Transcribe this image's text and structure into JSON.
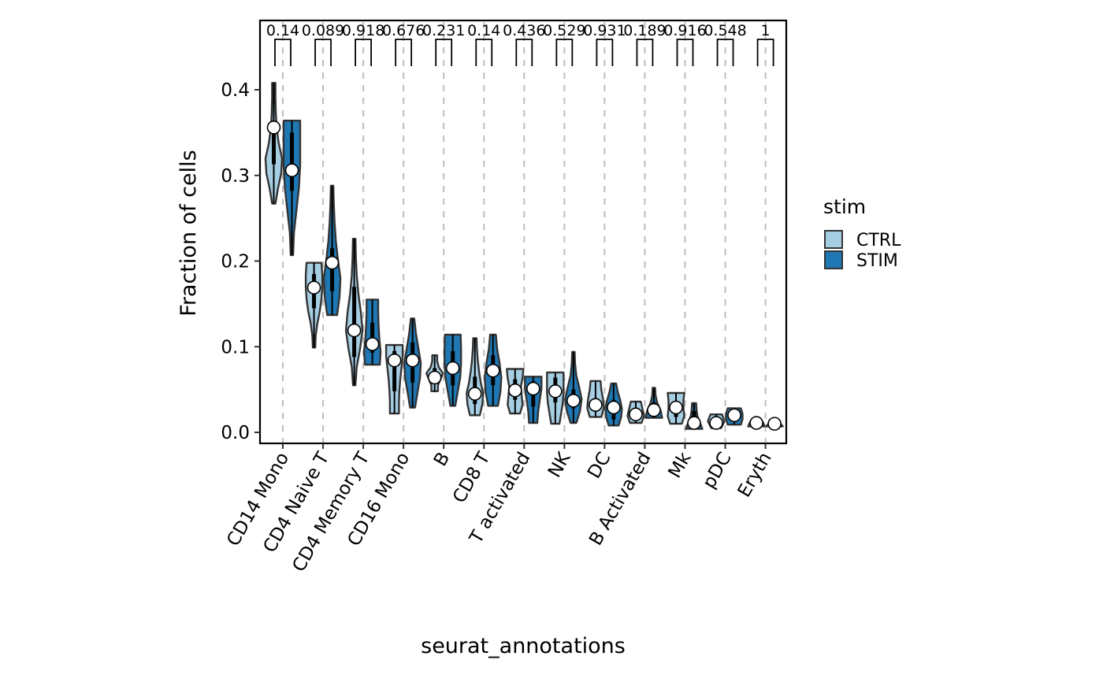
{
  "chart_data": {
    "type": "violin",
    "title": "",
    "xlabel": "seurat_annotations",
    "ylabel": "Fraction of cells",
    "ylim": [
      -0.012,
      0.48
    ],
    "yticks": [
      0.0,
      0.1,
      0.2,
      0.3,
      0.4
    ],
    "ytick_labels": [
      "0.0",
      "0.1",
      "0.2",
      "0.3",
      "0.4"
    ],
    "grid": "vertical dashed lines at categories",
    "legend": {
      "title": "stim",
      "placement": "right",
      "entries": [
        {
          "name": "CTRL",
          "color": "#a6cee3"
        },
        {
          "name": "STIM",
          "color": "#1f78b4"
        }
      ]
    },
    "categories": [
      "CD14 Mono",
      "CD4 Naive T",
      "CD4 Memory T",
      "CD16 Mono",
      "B",
      "CD8 T",
      "T activated",
      "NK",
      "DC",
      "B Activated",
      "Mk",
      "pDC",
      "Eryth"
    ],
    "p_values": [
      "0.14",
      "0.089",
      "0.918",
      "0.676",
      "0.231",
      "0.14",
      "0.436",
      "0.529",
      "0.931",
      "0.189",
      "0.916",
      "0.548",
      "1"
    ],
    "series": [
      {
        "name": "CTRL",
        "color": "#a6cee3",
        "violins": [
          {
            "min": 0.267,
            "max": 0.408,
            "q1": 0.313,
            "q3": 0.364,
            "point": 0.356,
            "shape": [
              0.2,
              0.5,
              0.9,
              1.0,
              0.6,
              0.35,
              0.25,
              0.2,
              0.2
            ]
          },
          {
            "min": 0.099,
            "max": 0.198,
            "q1": 0.145,
            "q3": 0.185,
            "point": 0.169,
            "shape": [
              0.1,
              0.2,
              0.4,
              0.7,
              0.9,
              1.0,
              1.0,
              0.9
            ]
          },
          {
            "min": 0.055,
            "max": 0.226,
            "q1": 0.088,
            "q3": 0.17,
            "point": 0.119,
            "shape": [
              0.1,
              0.3,
              0.7,
              1.0,
              0.8,
              0.5,
              0.3,
              0.2,
              0.15
            ]
          },
          {
            "min": 0.022,
            "max": 0.102,
            "q1": 0.048,
            "q3": 0.095,
            "point": 0.084,
            "shape": [
              0.55,
              0.55,
              0.6,
              0.7,
              0.85,
              1.0,
              1.0
            ]
          },
          {
            "min": 0.048,
            "max": 0.09,
            "q1": 0.058,
            "q3": 0.075,
            "point": 0.064,
            "shape": [
              0.4,
              0.4,
              0.7,
              1.0,
              0.5,
              0.3,
              0.3
            ]
          },
          {
            "min": 0.02,
            "max": 0.11,
            "q1": 0.033,
            "q3": 0.065,
            "point": 0.045,
            "shape": [
              0.6,
              0.9,
              1.0,
              0.7,
              0.5,
              0.35,
              0.25,
              0.2
            ]
          },
          {
            "min": 0.022,
            "max": 0.074,
            "q1": 0.038,
            "q3": 0.062,
            "point": 0.049,
            "shape": [
              0.6,
              0.9,
              0.8,
              0.7,
              0.9,
              1.0
            ]
          },
          {
            "min": 0.01,
            "max": 0.07,
            "q1": 0.035,
            "q3": 0.064,
            "point": 0.048,
            "shape": [
              0.5,
              0.7,
              0.9,
              1.0,
              1.0,
              1.0
            ]
          },
          {
            "min": 0.018,
            "max": 0.06,
            "q1": 0.024,
            "q3": 0.04,
            "point": 0.032,
            "shape": [
              0.7,
              1.0,
              0.9,
              0.7,
              0.6
            ]
          },
          {
            "min": 0.011,
            "max": 0.036,
            "q1": 0.016,
            "q3": 0.028,
            "point": 0.021,
            "shape": [
              0.7,
              1.0,
              0.8,
              0.6
            ]
          },
          {
            "min": 0.01,
            "max": 0.046,
            "q1": 0.018,
            "q3": 0.036,
            "point": 0.029,
            "shape": [
              0.7,
              1.0,
              0.9,
              0.9,
              1.0
            ]
          },
          {
            "min": 0.005,
            "max": 0.021,
            "q1": 0.008,
            "q3": 0.016,
            "point": 0.011,
            "shape": [
              0.6,
              1.0,
              0.7
            ]
          },
          {
            "min": 0.007,
            "max": 0.016,
            "q1": 0.009,
            "q3": 0.013,
            "point": 0.011,
            "shape": [
              1.0,
              0.8,
              0.5
            ]
          }
        ]
      },
      {
        "name": "STIM",
        "color": "#1f78b4",
        "violins": [
          {
            "min": 0.207,
            "max": 0.364,
            "q1": 0.282,
            "q3": 0.35,
            "point": 0.306,
            "shape": [
              0.1,
              0.25,
              0.55,
              0.85,
              1.0,
              1.0,
              1.0
            ]
          },
          {
            "min": 0.137,
            "max": 0.288,
            "q1": 0.165,
            "q3": 0.215,
            "point": 0.198,
            "shape": [
              0.6,
              0.9,
              1.0,
              0.7,
              0.45,
              0.3,
              0.2,
              0.15
            ]
          },
          {
            "min": 0.079,
            "max": 0.155,
            "q1": 0.093,
            "q3": 0.128,
            "point": 0.103,
            "shape": [
              0.9,
              1.0,
              0.85,
              0.75,
              0.7,
              0.7
            ]
          },
          {
            "min": 0.029,
            "max": 0.133,
            "q1": 0.058,
            "q3": 0.105,
            "point": 0.084,
            "shape": [
              0.3,
              0.6,
              0.9,
              1.0,
              0.7,
              0.4,
              0.2
            ]
          },
          {
            "min": 0.031,
            "max": 0.114,
            "q1": 0.055,
            "q3": 0.095,
            "point": 0.075,
            "shape": [
              0.3,
              0.6,
              0.9,
              1.0,
              1.0,
              0.95
            ]
          },
          {
            "min": 0.031,
            "max": 0.114,
            "q1": 0.055,
            "q3": 0.09,
            "point": 0.072,
            "shape": [
              0.6,
              0.9,
              1.0,
              0.8,
              0.5,
              0.35
            ]
          },
          {
            "min": 0.011,
            "max": 0.065,
            "q1": 0.03,
            "q3": 0.06,
            "point": 0.051,
            "shape": [
              0.5,
              0.6,
              0.8,
              1.0,
              1.0
            ]
          },
          {
            "min": 0.011,
            "max": 0.094,
            "q1": 0.028,
            "q3": 0.05,
            "point": 0.037,
            "shape": [
              0.35,
              0.8,
              1.0,
              0.7,
              0.35,
              0.2,
              0.15
            ]
          },
          {
            "min": 0.008,
            "max": 0.057,
            "q1": 0.015,
            "q3": 0.038,
            "point": 0.029,
            "shape": [
              0.6,
              0.9,
              1.0,
              0.8,
              0.5,
              0.3
            ]
          },
          {
            "min": 0.017,
            "max": 0.052,
            "q1": 0.021,
            "q3": 0.035,
            "point": 0.026,
            "shape": [
              1.0,
              0.8,
              0.4,
              0.2,
              0.15
            ]
          },
          {
            "min": 0.004,
            "max": 0.034,
            "q1": 0.007,
            "q3": 0.025,
            "point": 0.011,
            "shape": [
              1.0,
              0.7,
              0.4,
              0.3,
              0.25
            ]
          },
          {
            "min": 0.009,
            "max": 0.028,
            "q1": 0.014,
            "q3": 0.024,
            "point": 0.02,
            "shape": [
              0.8,
              1.0,
              1.0,
              0.8
            ]
          },
          {
            "min": 0.007,
            "max": 0.014,
            "q1": 0.009,
            "q3": 0.012,
            "point": 0.01,
            "shape": [
              1.0,
              0.7,
              0.4
            ]
          }
        ]
      }
    ]
  }
}
